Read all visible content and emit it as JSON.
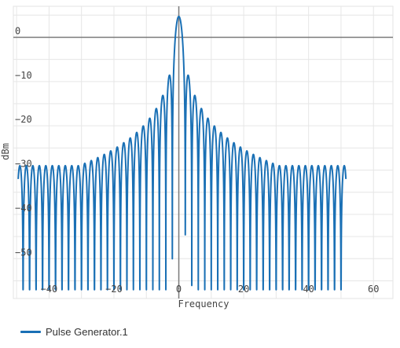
{
  "chart_data": {
    "type": "line",
    "title": "",
    "xlabel": "Frequency",
    "ylabel": "dBm",
    "xlim": [
      -51,
      66
    ],
    "ylim": [
      -59,
      7
    ],
    "x_ticks": [
      -40,
      -20,
      0,
      20,
      40,
      60
    ],
    "y_ticks": [
      0,
      -10,
      -20,
      -30,
      -40,
      -50
    ],
    "grid": true,
    "legend_position": "bottom-left",
    "series": [
      {
        "name": "Pulse Generator.1",
        "color": "#1a70b5",
        "model": "sinc squared main lobe at x=0 peaking near 4.7 dBm, lobe width about 2 frequency units, side lobes alternating with deep nulls, side-lobe peaks decaying toward about -29 dBm at the edges",
        "x_range": [
          -49.5,
          51.5
        ],
        "peak_dbm": 4.7,
        "lobe_width": 2,
        "floor_envelope_dbm": -29,
        "null_floor_dbm": -57
      }
    ]
  }
}
